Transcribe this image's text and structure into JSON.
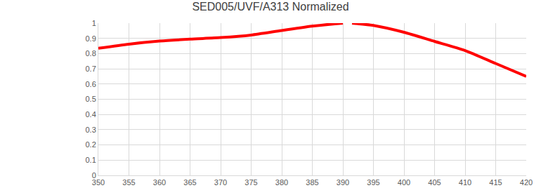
{
  "chart_data": {
    "type": "line",
    "title": "SED005/UVF/A313 Normalized",
    "x": [
      350,
      355,
      360,
      365,
      370,
      375,
      380,
      385,
      389,
      390,
      390.8,
      391.5,
      395,
      400,
      405,
      410,
      415,
      420
    ],
    "values": [
      0.835,
      0.862,
      0.882,
      0.895,
      0.905,
      0.922,
      0.952,
      0.98,
      0.997,
      1.0,
      null,
      1.0,
      0.985,
      0.94,
      0.88,
      0.82,
      0.735,
      0.65
    ],
    "color": "#ff0000",
    "xlim": [
      350,
      420
    ],
    "xticks": [
      350,
      355,
      360,
      365,
      370,
      375,
      380,
      385,
      390,
      395,
      400,
      405,
      410,
      415,
      420
    ],
    "ylim": [
      0,
      1
    ],
    "yticks": [
      0,
      0.1,
      0.2,
      0.3,
      0.4,
      0.5,
      0.6,
      0.7,
      0.8,
      0.9,
      1
    ],
    "grid": true
  }
}
